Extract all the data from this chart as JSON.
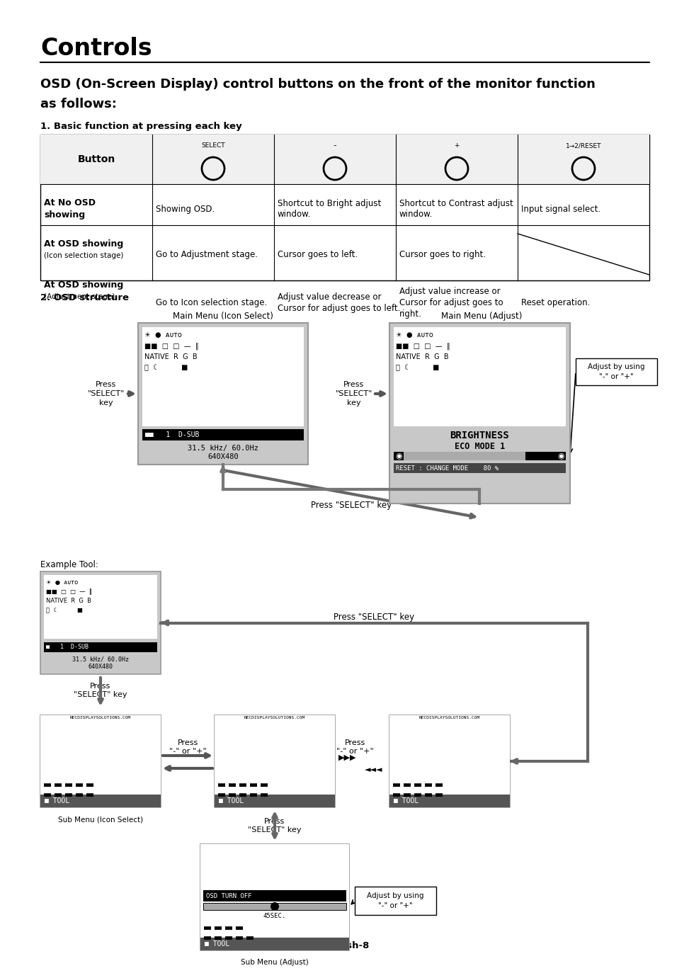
{
  "title": "Controls",
  "subtitle_line1": "OSD (On-Screen Display) control buttons on the front of the monitor function",
  "subtitle_line2": "as follows:",
  "section1": "1. Basic function at pressing each key",
  "section2": "2. OSD structure",
  "footer": "English-8",
  "bg_color": "#ffffff",
  "table": {
    "btn_header": "Button",
    "col2_label": "SELECT",
    "col3_label": "–",
    "col4_label": "+",
    "col5_label": "1→2/RESET",
    "row1_bold": "At No OSD\nshowing",
    "row1_cells": [
      "Showing OSD.",
      "Shortcut to Bright adjust\nwindow.",
      "Shortcut to Contrast adjust\nwindow.",
      "Input signal select."
    ],
    "row2_bold": "At OSD showing",
    "row2_sub": "(Icon selection stage)",
    "row2_cells": [
      "Go to Adjustment stage.",
      "Cursor goes to left.",
      "Cursor goes to right.",
      ""
    ],
    "row3_bold": "At OSD showing",
    "row3_sub": "(Adjustment stage)",
    "row3_cells": [
      "Go to Icon selection stage.",
      "Adjust value decrease or\nCursor for adjust goes to left.",
      "Adjust value increase or\nCursor for adjust goes to\nright.",
      "Reset operation."
    ]
  },
  "main_menu_icon_label": "Main Menu (Icon Select)",
  "main_menu_adj_label": "Main Menu (Adjust)",
  "press_select_key1": "Press\n\"SELECT\"\nkey",
  "press_select_key2": "Press\n\"SELECT\"\nkey",
  "press_select_key_back": "Press \"SELECT\" key",
  "adjust_by_using1": "Adjust by using\n\"-\" or \"+\"",
  "example_tool_label": "Example Tool:",
  "press_select_key3": "Press \"SELECT\" key",
  "press_select_key_down": "Press\n\"SELECT\" key",
  "press_select_key_updown": "Press\n\"SELECT\" key",
  "sub_menu_icon_label": "Sub Menu (Icon Select)",
  "sub_menu_adj_label": "Sub Menu (Adjust)",
  "press_minus_plus1": "Press\n\"-\" or \"+\"",
  "press_minus_plus2": "Press\n\"-\" or \"+\"",
  "adjust_by_using2": "Adjust by using\n\"-\" or \"+\"",
  "brightness_text": "BRIGHTNESS",
  "eco_mode_text": "ECO MODE 1",
  "change_mode_text": "RESET : CHANGE MODE    80 %",
  "dsub_text1": "  1  D-SUB",
  "freq_text1": "31.5 kHz/ 60.0Hz",
  "res_text1": "640X480",
  "dsub_text2": "  1  D-SUB",
  "freq_text2": "31.5 kHz/ 60.0Hz",
  "res_text2": "640X480",
  "osd_turn_off": "OSD TURN OFF",
  "sec_text": "45SEC.",
  "nec_url": "NECDISPLAYSOLUTIONS.COM"
}
